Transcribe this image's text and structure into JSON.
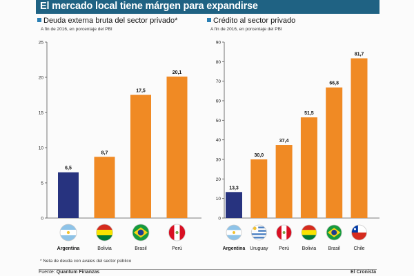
{
  "header": {
    "title": "El mercado local tiene márgen para expandirse"
  },
  "footnote": "* Neta de deuda con avales del sector público",
  "footer": {
    "source_label": "Fuente:",
    "source_name": "Quantum Finanzas",
    "brand": "El Cronista"
  },
  "colors": {
    "header_bg": "#1f6283",
    "highlight_bar": "#27337f",
    "bar": "#f08a24",
    "bullet": "#2a7fb4"
  },
  "chart_data": [
    {
      "type": "bar",
      "title": "Deuda externa bruta del sector privado*",
      "subtitle": "A fin de 2016, en porcentaje del PBI",
      "categories": [
        "Argentina",
        "Bolivia",
        "Brasil",
        "Perú"
      ],
      "values": [
        6.5,
        8.7,
        17.5,
        20.1
      ],
      "value_labels": [
        "6,5",
        "8,7",
        "17,5",
        "20,1"
      ],
      "highlight": "Argentina",
      "ylim": [
        0,
        25
      ],
      "yticks": [
        0,
        5,
        10,
        15,
        20,
        25
      ],
      "grid": false,
      "flags": [
        "argentina",
        "bolivia",
        "brazil",
        "peru"
      ]
    },
    {
      "type": "bar",
      "title": "Crédito al sector privado",
      "subtitle": "A fin de 2016, en porcentaje del PBI",
      "categories": [
        "Argentina",
        "Uruguay",
        "Perú",
        "Bolivia",
        "Brasil",
        "Chile"
      ],
      "values": [
        13.3,
        30.0,
        37.4,
        51.5,
        66.8,
        81.7
      ],
      "value_labels": [
        "13,3",
        "30,0",
        "37,4",
        "51,5",
        "66,8",
        "81,7"
      ],
      "highlight": "Argentina",
      "ylim": [
        0,
        90
      ],
      "yticks": [
        0,
        10,
        20,
        30,
        40,
        50,
        60,
        70,
        80,
        90
      ],
      "grid": false,
      "flags": [
        "argentina",
        "uruguay",
        "peru",
        "bolivia",
        "brazil",
        "chile"
      ]
    }
  ]
}
